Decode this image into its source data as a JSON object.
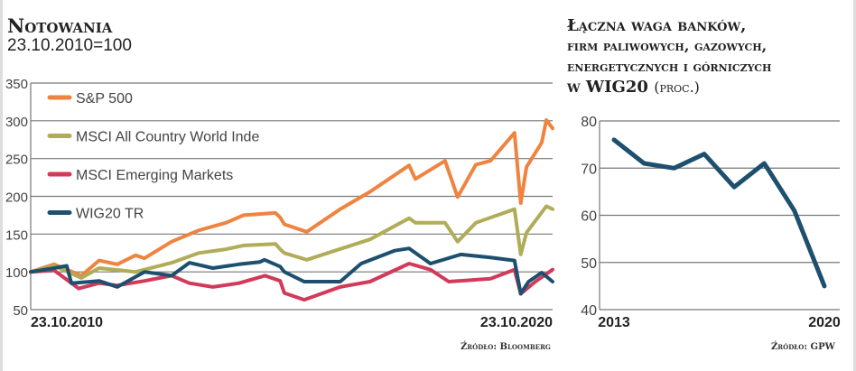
{
  "chart_data": [
    {
      "type": "line",
      "title": "Notowania",
      "subtitle": "23.10.2010=100",
      "xlabel": "",
      "ylabel": "",
      "ylim": [
        50,
        350
      ],
      "xlim": [
        2010.81,
        2020.81
      ],
      "yticks": [
        "350",
        "300",
        "250",
        "200",
        "150",
        "100",
        "50"
      ],
      "ytick_values": [
        350,
        300,
        250,
        200,
        150,
        100,
        50
      ],
      "xtick_labels": [
        "23.10.2010",
        "23.10.2020"
      ],
      "grid": true,
      "legend_position": "top-left",
      "source": "Źródło: Bloomberg",
      "series": [
        {
          "name": "S&P 500",
          "color": "#ee8440",
          "x": [
            2010.81,
            2011.26,
            2011.78,
            2012.12,
            2012.47,
            2012.82,
            2012.99,
            2013.51,
            2014.03,
            2014.55,
            2014.89,
            2015.5,
            2015.59,
            2015.67,
            2016.1,
            2016.74,
            2017.31,
            2018.06,
            2018.18,
            2018.75,
            2018.99,
            2019.34,
            2019.62,
            2020.08,
            2020.2,
            2020.31,
            2020.6,
            2020.69,
            2020.81
          ],
          "y": [
            100,
            110,
            95,
            115,
            110,
            122,
            118,
            140,
            155,
            165,
            175,
            178,
            172,
            163,
            153,
            183,
            206,
            241,
            223,
            247,
            199,
            242,
            247,
            284,
            191,
            239,
            271,
            301,
            290
          ]
        },
        {
          "name": "MSCI All Country World Inde",
          "color": "#b0ac58",
          "x": [
            2010.81,
            2011.26,
            2011.78,
            2012.12,
            2012.82,
            2013.51,
            2014.03,
            2014.55,
            2014.89,
            2015.5,
            2015.59,
            2015.67,
            2016.1,
            2017.31,
            2018.06,
            2018.18,
            2018.75,
            2018.99,
            2019.34,
            2020.08,
            2020.2,
            2020.31,
            2020.69,
            2020.81
          ],
          "y": [
            100,
            108,
            92,
            105,
            100,
            112,
            125,
            130,
            135,
            137,
            130,
            125,
            116,
            143,
            171,
            165,
            165,
            140,
            165,
            183,
            123,
            152,
            187,
            183
          ]
        },
        {
          "name": "MSCI Emerging Markets",
          "color": "#d23a5a",
          "x": [
            2010.81,
            2011.26,
            2011.73,
            2012.12,
            2012.47,
            2012.99,
            2013.51,
            2013.85,
            2014.3,
            2014.8,
            2015.3,
            2015.59,
            2015.67,
            2016.05,
            2016.74,
            2017.31,
            2018.06,
            2018.47,
            2018.82,
            2019.62,
            2020.08,
            2020.2,
            2020.48,
            2020.81
          ],
          "y": [
            100,
            102,
            78,
            85,
            82,
            88,
            95,
            85,
            80,
            85,
            95,
            88,
            72,
            63,
            80,
            87,
            111,
            103,
            87,
            91,
            103,
            71,
            87,
            103
          ]
        },
        {
          "name": "WIG20 TR",
          "color": "#1d4f6e",
          "x": [
            2010.81,
            2011.26,
            2011.5,
            2011.59,
            2012.12,
            2012.47,
            2012.99,
            2013.51,
            2013.85,
            2014.3,
            2014.8,
            2015.2,
            2015.29,
            2015.59,
            2015.67,
            2016.05,
            2016.74,
            2017.14,
            2017.78,
            2018.06,
            2018.47,
            2019.05,
            2019.62,
            2020.08,
            2020.2,
            2020.35,
            2020.6,
            2020.81
          ],
          "y": [
            100,
            105,
            108,
            85,
            88,
            80,
            100,
            95,
            112,
            105,
            110,
            113,
            116,
            107,
            100,
            87,
            87,
            111,
            128,
            131,
            111,
            123,
            119,
            115,
            71,
            87,
            99,
            87
          ]
        }
      ]
    },
    {
      "type": "line",
      "title_lines": [
        "Łączna waga banków,",
        "firm paliwowych, gazowych,",
        "energetycznych i górniczych",
        "w WIG20"
      ],
      "title_suffix": "(proc.)",
      "ylim": [
        40,
        80
      ],
      "yticks": [
        "80",
        "70",
        "60",
        "50",
        "40"
      ],
      "ytick_values": [
        80,
        70,
        60,
        50,
        40
      ],
      "xtick_labels": [
        "2013",
        "2020"
      ],
      "grid": true,
      "source": "Źródło: GPW",
      "series": [
        {
          "name": "Łączna waga",
          "color": "#1d4f6e",
          "x": [
            2013,
            2014,
            2015,
            2016,
            2017,
            2018,
            2019,
            2020
          ],
          "y": [
            76,
            71,
            70,
            73,
            66,
            71,
            61,
            45
          ]
        }
      ]
    }
  ]
}
